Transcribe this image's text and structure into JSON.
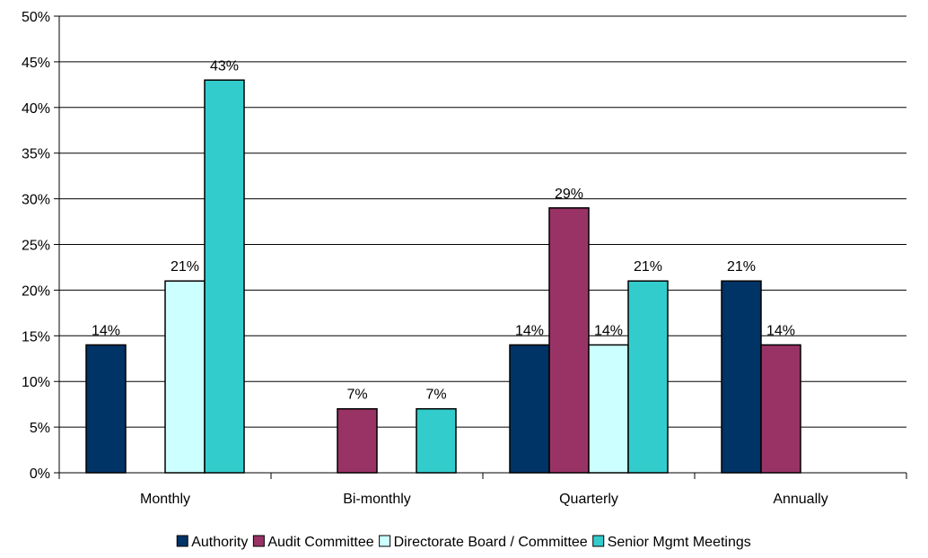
{
  "chart_data": {
    "type": "bar",
    "categories": [
      "Monthly",
      "Bi-monthly",
      "Quarterly",
      "Annually"
    ],
    "series": [
      {
        "name": "Authority",
        "values": [
          14,
          null,
          14,
          21
        ],
        "color": "#003366"
      },
      {
        "name": "Audit Committee",
        "values": [
          null,
          7,
          29,
          14
        ],
        "color": "#993366"
      },
      {
        "name": "Directorate Board / Committee",
        "values": [
          21,
          null,
          14,
          null
        ],
        "color": "#CCFFFF"
      },
      {
        "name": "Senior Mgmt Meetings",
        "values": [
          43,
          7,
          21,
          null
        ],
        "color": "#33CCCC"
      }
    ],
    "ylim": [
      0,
      50
    ],
    "yticks": [
      0,
      5,
      10,
      15,
      20,
      25,
      30,
      35,
      40,
      45,
      50
    ],
    "value_suffix": "%",
    "grid": true,
    "legend_position": "bottom"
  }
}
